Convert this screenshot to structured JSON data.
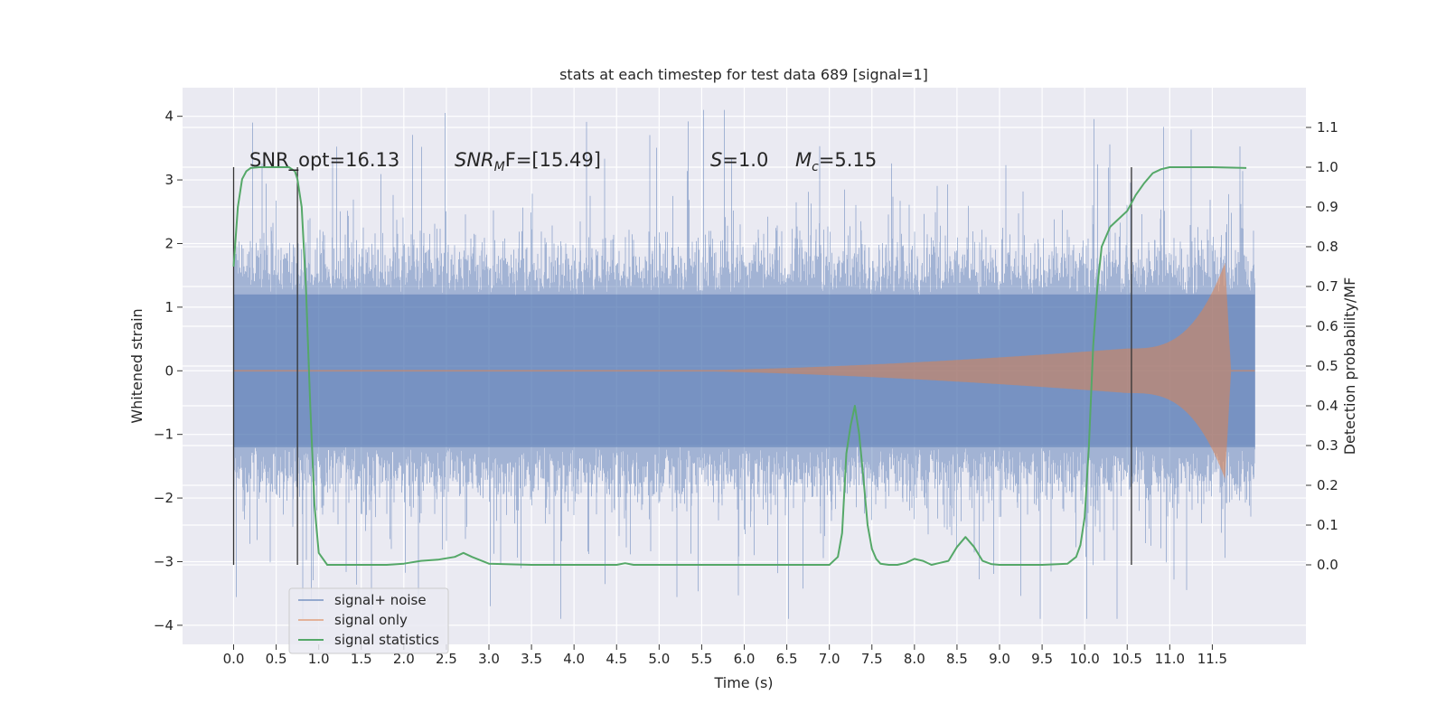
{
  "chart_data": {
    "type": "line",
    "title": "stats at each timestep for test data 689 [signal=1]",
    "xlabel": "Time (s)",
    "ylabel": "Whitened strain",
    "y2label": "Detection probability/MF",
    "xlim": [
      -0.6,
      12.6
    ],
    "ylim": [
      -4.3,
      4.45
    ],
    "y2lim": [
      -0.2,
      1.2
    ],
    "x_ticks": [
      "0.0",
      "0.5",
      "1.0",
      "1.5",
      "2.0",
      "2.5",
      "3.0",
      "3.5",
      "4.0",
      "4.5",
      "5.0",
      "5.5",
      "6.0",
      "6.5",
      "7.0",
      "7.5",
      "8.0",
      "8.5",
      "9.0",
      "9.5",
      "10.0",
      "10.5",
      "11.0",
      "11.5"
    ],
    "y_ticks": [
      "4",
      "3",
      "2",
      "1",
      "0",
      "−1",
      "−2",
      "−3",
      "−4"
    ],
    "y2_ticks": [
      "1.1",
      "1.0",
      "0.9",
      "0.8",
      "0.7",
      "0.6",
      "0.5",
      "0.4",
      "0.3",
      "0.2",
      "0.1",
      "0.0"
    ],
    "grid": true,
    "legend_position": "lower-left",
    "annotations": [
      "SNR_opt=16.13",
      "SNR",
      "M",
      "F=[15.49]",
      "S",
      "=1.0",
      "M",
      "c",
      "=5.15"
    ],
    "series": [
      {
        "name": "signal+ noise",
        "color": "#4c72b0",
        "style": "dense noise, core band about ±1.2, peaks to about 4.1 and -3.9",
        "x_range": [
          0.0,
          12.0
        ]
      },
      {
        "name": "signal only",
        "color": "#dd8452",
        "style": "chirp: amplitude grows from 0 near 5.0 s to about 0.35 at 10.5 s, peaks about 1.7 at 11.65 s, ends at 11.72 s",
        "x_range": [
          0.0,
          12.0
        ]
      },
      {
        "name": "signal statistics",
        "color": "#55a868",
        "axis": "right",
        "x": [
          0.0,
          0.05,
          0.1,
          0.15,
          0.2,
          0.3,
          0.5,
          0.65,
          0.72,
          0.75,
          0.8,
          0.85,
          0.9,
          0.95,
          1.0,
          1.1,
          1.5,
          1.8,
          2.0,
          2.2,
          2.4,
          2.6,
          2.7,
          2.8,
          3.0,
          3.5,
          4.5,
          4.6,
          4.7,
          5.0,
          6.0,
          7.0,
          7.1,
          7.15,
          7.2,
          7.25,
          7.3,
          7.35,
          7.4,
          7.45,
          7.5,
          7.55,
          7.6,
          7.7,
          7.8,
          7.9,
          8.0,
          8.1,
          8.2,
          8.3,
          8.4,
          8.5,
          8.6,
          8.7,
          8.8,
          8.9,
          9.0,
          9.5,
          9.8,
          9.9,
          9.95,
          10.0,
          10.05,
          10.1,
          10.15,
          10.2,
          10.3,
          10.5,
          10.6,
          10.7,
          10.8,
          10.9,
          11.0,
          11.2,
          11.5,
          11.9
        ],
        "values": [
          0.75,
          0.9,
          0.97,
          0.99,
          0.998,
          1.0,
          1.0,
          1.0,
          0.99,
          0.97,
          0.9,
          0.7,
          0.4,
          0.15,
          0.03,
          0.0,
          0.0,
          0.0,
          0.003,
          0.01,
          0.013,
          0.02,
          0.03,
          0.02,
          0.003,
          0.0,
          0.0,
          0.004,
          0.0,
          0.0,
          0.0,
          0.0,
          0.02,
          0.08,
          0.28,
          0.35,
          0.4,
          0.33,
          0.22,
          0.1,
          0.04,
          0.015,
          0.003,
          0.0,
          0.0,
          0.005,
          0.015,
          0.01,
          0.0,
          0.005,
          0.01,
          0.045,
          0.07,
          0.045,
          0.01,
          0.002,
          0.0,
          0.0,
          0.003,
          0.02,
          0.05,
          0.12,
          0.3,
          0.55,
          0.7,
          0.8,
          0.85,
          0.89,
          0.93,
          0.96,
          0.985,
          0.995,
          1.0,
          1.0,
          1.0,
          0.998
        ]
      }
    ],
    "vertical_markers": [
      0.0,
      0.75,
      10.55
    ]
  }
}
